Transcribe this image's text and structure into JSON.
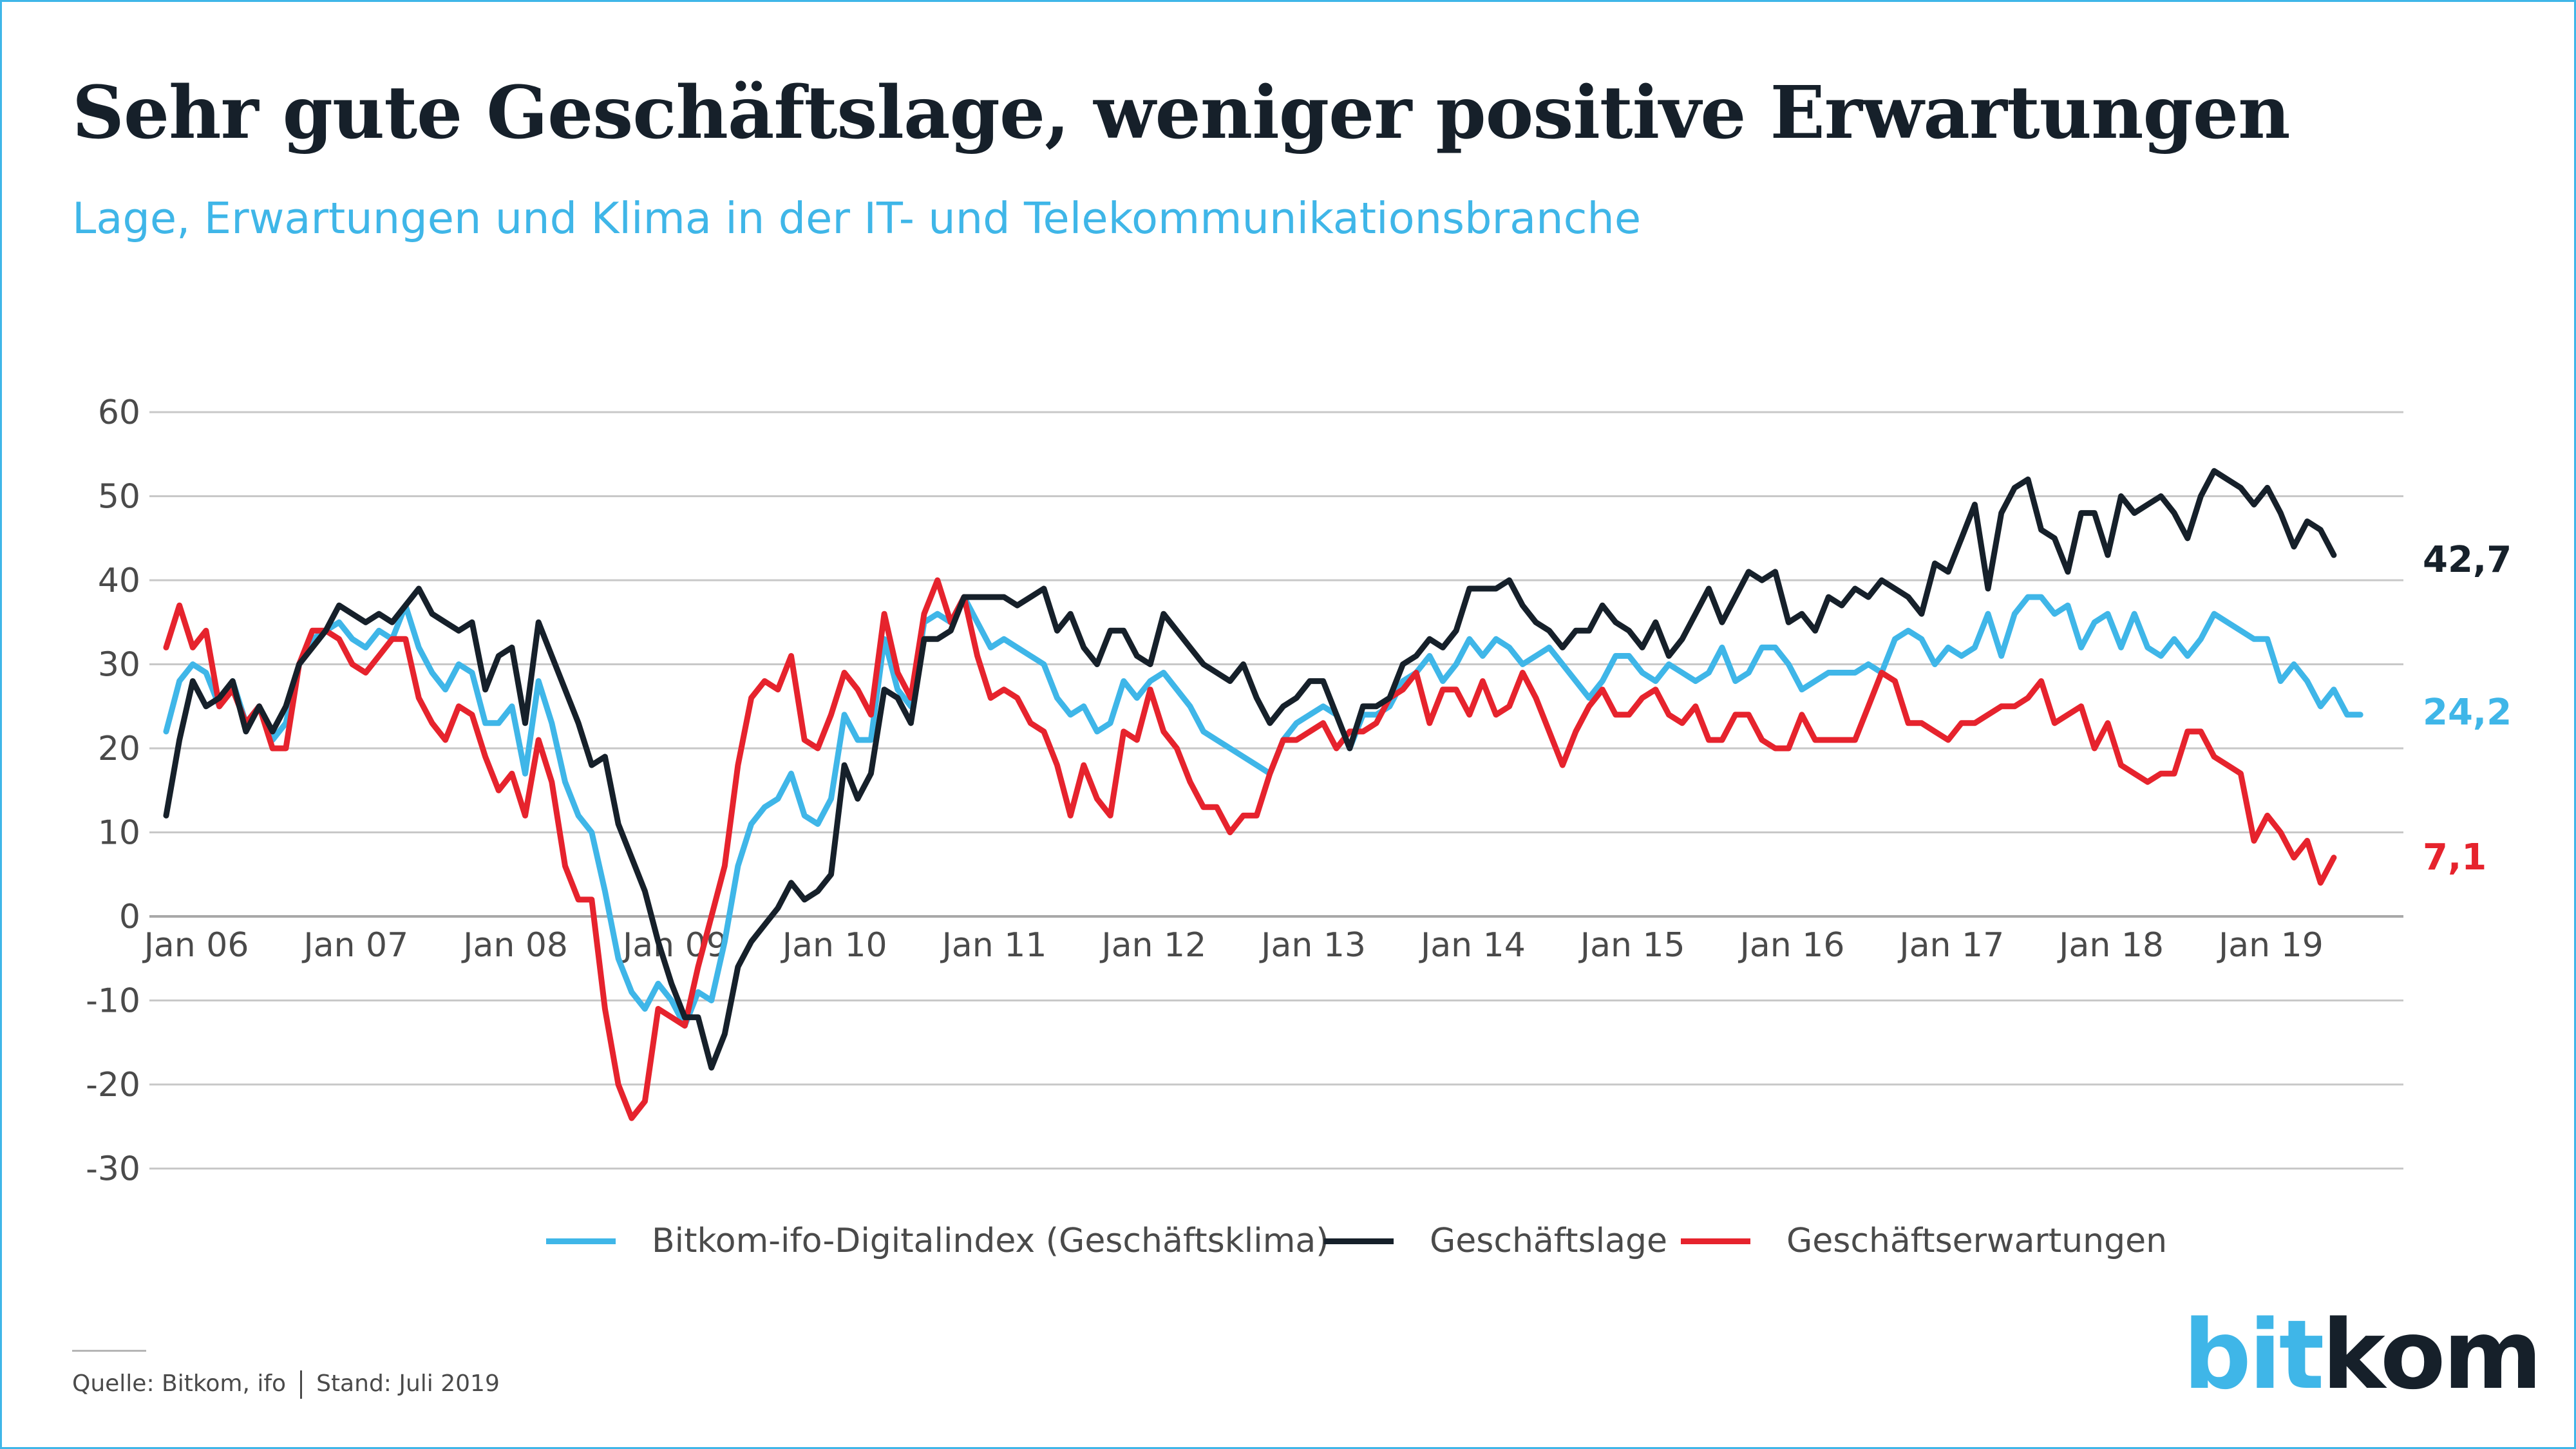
{
  "header": {
    "title": "Sehr gute Geschäftslage, weniger positive Erwartungen",
    "subtitle": "Lage, Erwartungen und Klima in der IT- und Telekommunikationsbranche"
  },
  "footer": {
    "source": "Quelle: Bitkom, ifo",
    "date": "Stand: Juli 2019"
  },
  "logo": {
    "part1": "bit",
    "part2": "kom"
  },
  "colors": {
    "frame": "#3fb6e8",
    "klima": "#3fb6e8",
    "lage": "#16202a",
    "erwartungen": "#e6232d",
    "grid": "#c8c8c8",
    "axis_text": "#4a4a4a"
  },
  "chart_data": {
    "type": "line",
    "title": "Sehr gute Geschäftslage, weniger positive Erwartungen",
    "subtitle": "Lage, Erwartungen und Klima in der IT- und Telekommunikationsbranche",
    "ylim": [
      -30,
      60
    ],
    "yticks": [
      60,
      50,
      40,
      30,
      20,
      10,
      0,
      -10,
      -20,
      -30
    ],
    "x_start": "2006-01",
    "x_end": "2019-07",
    "xticks": [
      "Jan 06",
      "Jan 07",
      "Jan 08",
      "Jan 09",
      "Jan 10",
      "Jan 11",
      "Jan 12",
      "Jan 13",
      "Jan 14",
      "Jan 15",
      "Jan 16",
      "Jan 17",
      "Jan 18",
      "Jan 19"
    ],
    "grid": "horizontal",
    "legend_position": "bottom",
    "series": [
      {
        "name": "Bitkom-ifo-Digitalindex (Geschäftsklima)",
        "color": "#3fb6e8",
        "end_label": "24,2",
        "values": [
          22,
          28,
          30,
          29,
          25,
          28,
          23,
          25,
          21,
          23,
          30,
          33,
          34,
          35,
          33,
          32,
          34,
          33,
          37,
          32,
          29,
          27,
          30,
          29,
          23,
          23,
          25,
          17,
          28,
          23,
          16,
          12,
          10,
          3,
          -5,
          -9,
          -11,
          -8,
          -10,
          -13,
          -9,
          -10,
          -3,
          6,
          11,
          13,
          14,
          17,
          12,
          11,
          14,
          24,
          21,
          21,
          33,
          27,
          25,
          35,
          36,
          35,
          38,
          35,
          32,
          33,
          32,
          31,
          30,
          26,
          24,
          25,
          22,
          23,
          28,
          26,
          28,
          29,
          27,
          25,
          22,
          21,
          20,
          19,
          18,
          17,
          21,
          23,
          24,
          25,
          24,
          20,
          24,
          24,
          25,
          28,
          29,
          31,
          28,
          30,
          33,
          31,
          33,
          32,
          30,
          31,
          32,
          30,
          28,
          26,
          28,
          31,
          31,
          29,
          28,
          30,
          29,
          28,
          29,
          32,
          28,
          29,
          32,
          32,
          30,
          27,
          28,
          29,
          29,
          29,
          30,
          29,
          33,
          34,
          33,
          30,
          32,
          31,
          32,
          36,
          31,
          36,
          38,
          38,
          36,
          37,
          32,
          35,
          36,
          32,
          36,
          32,
          31,
          33,
          31,
          33,
          36,
          35,
          34,
          33,
          33,
          28,
          30,
          28,
          25,
          27,
          24,
          24
        ]
      },
      {
        "name": "Geschäftslage",
        "color": "#16202a",
        "end_label": "42,7",
        "values": [
          12,
          21,
          28,
          25,
          26,
          28,
          22,
          25,
          22,
          25,
          30,
          32,
          34,
          37,
          36,
          35,
          36,
          35,
          37,
          39,
          36,
          35,
          34,
          35,
          27,
          31,
          32,
          23,
          35,
          31,
          27,
          23,
          18,
          19,
          11,
          7,
          3,
          -3,
          -8,
          -12,
          -12,
          -18,
          -14,
          -6,
          -3,
          -1,
          1,
          4,
          2,
          3,
          5,
          18,
          14,
          17,
          27,
          26,
          23,
          33,
          33,
          34,
          38,
          38,
          38,
          38,
          37,
          38,
          39,
          34,
          36,
          32,
          30,
          34,
          34,
          31,
          30,
          36,
          34,
          32,
          30,
          29,
          28,
          30,
          26,
          23,
          25,
          26,
          28,
          28,
          24,
          20,
          25,
          25,
          26,
          30,
          31,
          33,
          32,
          34,
          39,
          39,
          39,
          40,
          37,
          35,
          34,
          32,
          34,
          34,
          37,
          35,
          34,
          32,
          35,
          31,
          33,
          36,
          39,
          35,
          38,
          41,
          40,
          41,
          35,
          36,
          34,
          38,
          37,
          39,
          38,
          40,
          39,
          38,
          36,
          42,
          41,
          45,
          49,
          39,
          48,
          51,
          52,
          46,
          45,
          41,
          48,
          48,
          43,
          50,
          48,
          49,
          50,
          48,
          45,
          50,
          53,
          52,
          51,
          49,
          51,
          48,
          44,
          47,
          46,
          43
        ]
      },
      {
        "name": "Geschäftserwartungen",
        "color": "#e6232d",
        "end_label": "7,1",
        "values": [
          32,
          37,
          32,
          34,
          25,
          27,
          23,
          25,
          20,
          20,
          30,
          34,
          34,
          33,
          30,
          29,
          31,
          33,
          33,
          26,
          23,
          21,
          25,
          24,
          19,
          15,
          17,
          12,
          21,
          16,
          6,
          2,
          2,
          -11,
          -20,
          -24,
          -22,
          -11,
          -12,
          -13,
          -6,
          0,
          6,
          18,
          26,
          28,
          27,
          31,
          21,
          20,
          24,
          29,
          27,
          24,
          36,
          29,
          26,
          36,
          40,
          35,
          38,
          31,
          26,
          27,
          26,
          23,
          22,
          18,
          12,
          18,
          14,
          12,
          22,
          21,
          27,
          22,
          20,
          16,
          13,
          13,
          10,
          12,
          12,
          17,
          21,
          21,
          22,
          23,
          20,
          22,
          22,
          23,
          26,
          27,
          29,
          23,
          27,
          27,
          24,
          28,
          24,
          25,
          29,
          26,
          22,
          18,
          22,
          25,
          27,
          24,
          24,
          26,
          27,
          24,
          23,
          25,
          21,
          21,
          24,
          24,
          21,
          20,
          20,
          24,
          21,
          21,
          21,
          21,
          25,
          29,
          28,
          23,
          23,
          22,
          21,
          23,
          23,
          24,
          25,
          25,
          26,
          28,
          23,
          24,
          25,
          20,
          23,
          18,
          17,
          16,
          17,
          17,
          22,
          22,
          19,
          18,
          17,
          9,
          12,
          10,
          7,
          9,
          4,
          7
        ]
      }
    ]
  }
}
